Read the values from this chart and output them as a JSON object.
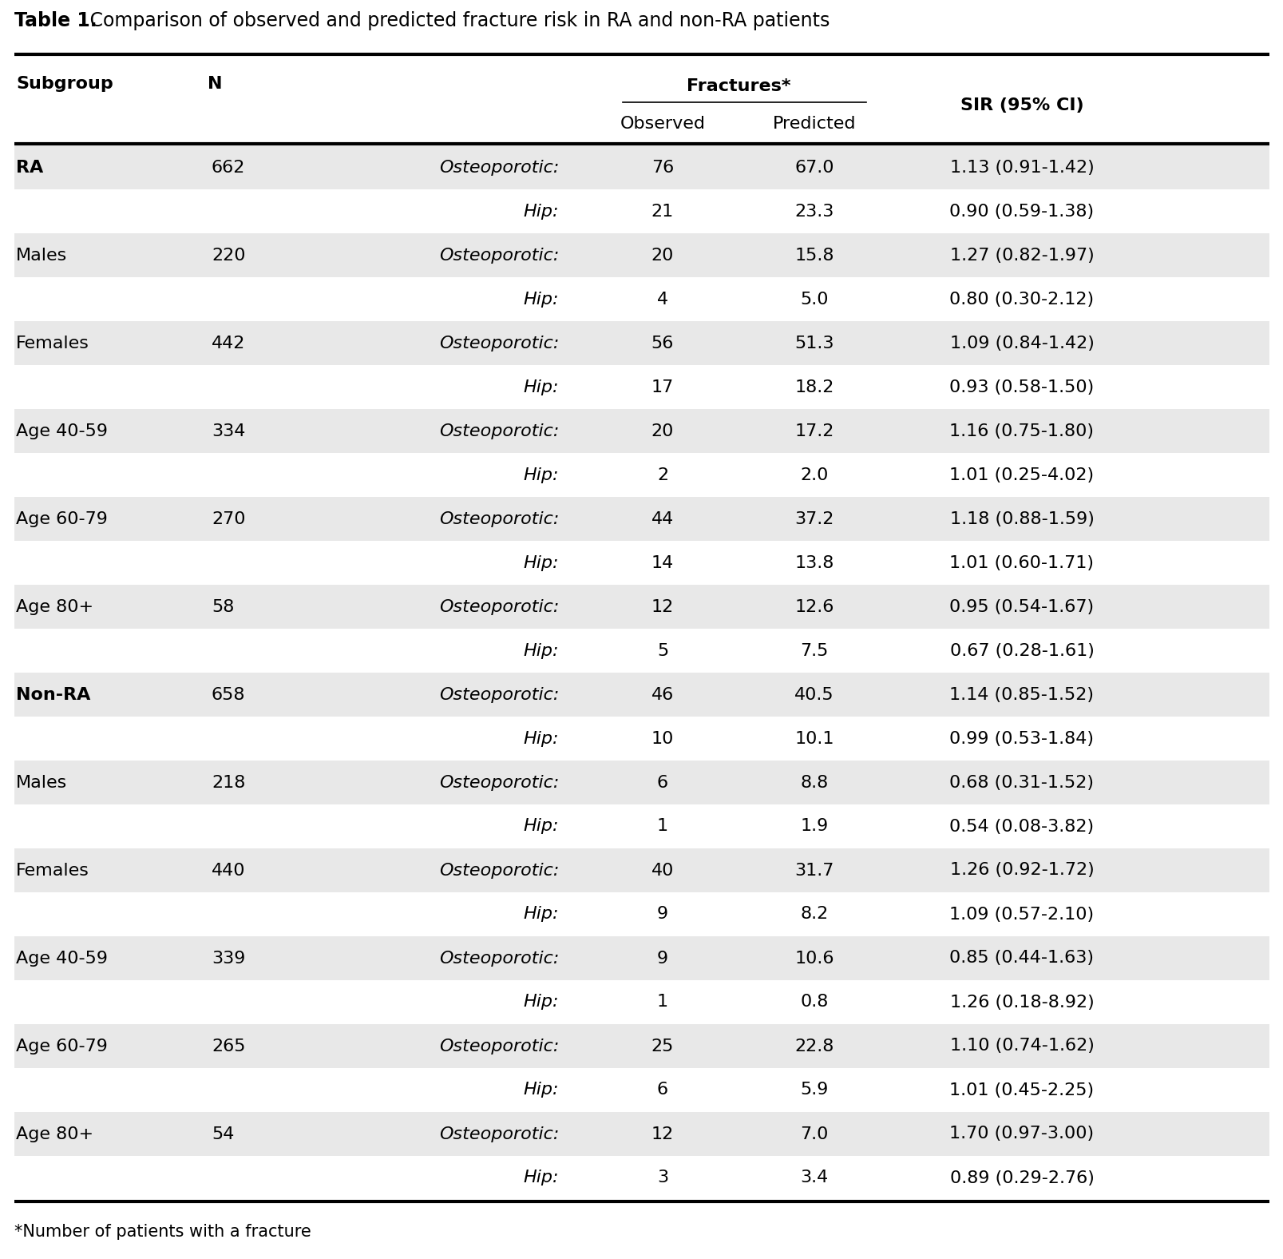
{
  "title_bold": "Table 1.",
  "title_regular": " Comparison of observed and predicted fracture risk in RA and non-RA patients",
  "footnote": "*Number of patients with a fracture",
  "rows": [
    {
      "subgroup": "RA",
      "n": "662",
      "fracture_type": "Osteoporotic:",
      "observed": "76",
      "predicted": "67.0",
      "sir": "1.13 (0.91-1.42)",
      "bold": true,
      "shaded": true
    },
    {
      "subgroup": "",
      "n": "",
      "fracture_type": "Hip:",
      "observed": "21",
      "predicted": "23.3",
      "sir": "0.90 (0.59-1.38)",
      "bold": false,
      "shaded": false
    },
    {
      "subgroup": "Males",
      "n": "220",
      "fracture_type": "Osteoporotic:",
      "observed": "20",
      "predicted": "15.8",
      "sir": "1.27 (0.82-1.97)",
      "bold": false,
      "shaded": true
    },
    {
      "subgroup": "",
      "n": "",
      "fracture_type": "Hip:",
      "observed": "4",
      "predicted": "5.0",
      "sir": "0.80 (0.30-2.12)",
      "bold": false,
      "shaded": false
    },
    {
      "subgroup": "Females",
      "n": "442",
      "fracture_type": "Osteoporotic:",
      "observed": "56",
      "predicted": "51.3",
      "sir": "1.09 (0.84-1.42)",
      "bold": false,
      "shaded": true
    },
    {
      "subgroup": "",
      "n": "",
      "fracture_type": "Hip:",
      "observed": "17",
      "predicted": "18.2",
      "sir": "0.93 (0.58-1.50)",
      "bold": false,
      "shaded": false
    },
    {
      "subgroup": "Age 40-59",
      "n": "334",
      "fracture_type": "Osteoporotic:",
      "observed": "20",
      "predicted": "17.2",
      "sir": "1.16 (0.75-1.80)",
      "bold": false,
      "shaded": true
    },
    {
      "subgroup": "",
      "n": "",
      "fracture_type": "Hip:",
      "observed": "2",
      "predicted": "2.0",
      "sir": "1.01 (0.25-4.02)",
      "bold": false,
      "shaded": false
    },
    {
      "subgroup": "Age 60-79",
      "n": "270",
      "fracture_type": "Osteoporotic:",
      "observed": "44",
      "predicted": "37.2",
      "sir": "1.18 (0.88-1.59)",
      "bold": false,
      "shaded": true
    },
    {
      "subgroup": "",
      "n": "",
      "fracture_type": "Hip:",
      "observed": "14",
      "predicted": "13.8",
      "sir": "1.01 (0.60-1.71)",
      "bold": false,
      "shaded": false
    },
    {
      "subgroup": "Age 80+",
      "n": "58",
      "fracture_type": "Osteoporotic:",
      "observed": "12",
      "predicted": "12.6",
      "sir": "0.95 (0.54-1.67)",
      "bold": false,
      "shaded": true
    },
    {
      "subgroup": "",
      "n": "",
      "fracture_type": "Hip:",
      "observed": "5",
      "predicted": "7.5",
      "sir": "0.67 (0.28-1.61)",
      "bold": false,
      "shaded": false
    },
    {
      "subgroup": "Non-RA",
      "n": "658",
      "fracture_type": "Osteoporotic:",
      "observed": "46",
      "predicted": "40.5",
      "sir": "1.14 (0.85-1.52)",
      "bold": true,
      "shaded": true
    },
    {
      "subgroup": "",
      "n": "",
      "fracture_type": "Hip:",
      "observed": "10",
      "predicted": "10.1",
      "sir": "0.99 (0.53-1.84)",
      "bold": false,
      "shaded": false
    },
    {
      "subgroup": "Males",
      "n": "218",
      "fracture_type": "Osteoporotic:",
      "observed": "6",
      "predicted": "8.8",
      "sir": "0.68 (0.31-1.52)",
      "bold": false,
      "shaded": true
    },
    {
      "subgroup": "",
      "n": "",
      "fracture_type": "Hip:",
      "observed": "1",
      "predicted": "1.9",
      "sir": "0.54 (0.08-3.82)",
      "bold": false,
      "shaded": false
    },
    {
      "subgroup": "Females",
      "n": "440",
      "fracture_type": "Osteoporotic:",
      "observed": "40",
      "predicted": "31.7",
      "sir": "1.26 (0.92-1.72)",
      "bold": false,
      "shaded": true
    },
    {
      "subgroup": "",
      "n": "",
      "fracture_type": "Hip:",
      "observed": "9",
      "predicted": "8.2",
      "sir": "1.09 (0.57-2.10)",
      "bold": false,
      "shaded": false
    },
    {
      "subgroup": "Age 40-59",
      "n": "339",
      "fracture_type": "Osteoporotic:",
      "observed": "9",
      "predicted": "10.6",
      "sir": "0.85 (0.44-1.63)",
      "bold": false,
      "shaded": true
    },
    {
      "subgroup": "",
      "n": "",
      "fracture_type": "Hip:",
      "observed": "1",
      "predicted": "0.8",
      "sir": "1.26 (0.18-8.92)",
      "bold": false,
      "shaded": false
    },
    {
      "subgroup": "Age 60-79",
      "n": "265",
      "fracture_type": "Osteoporotic:",
      "observed": "25",
      "predicted": "22.8",
      "sir": "1.10 (0.74-1.62)",
      "bold": false,
      "shaded": true
    },
    {
      "subgroup": "",
      "n": "",
      "fracture_type": "Hip:",
      "observed": "6",
      "predicted": "5.9",
      "sir": "1.01 (0.45-2.25)",
      "bold": false,
      "shaded": false
    },
    {
      "subgroup": "Age 80+",
      "n": "54",
      "fracture_type": "Osteoporotic:",
      "observed": "12",
      "predicted": "7.0",
      "sir": "1.70 (0.97-3.00)",
      "bold": false,
      "shaded": true
    },
    {
      "subgroup": "",
      "n": "",
      "fracture_type": "Hip:",
      "observed": "3",
      "predicted": "3.4",
      "sir": "0.89 (0.29-2.76)",
      "bold": false,
      "shaded": false
    }
  ],
  "shade_color": "#e8e8e8",
  "bg_color": "#ffffff",
  "text_color": "#000000",
  "title_fontsize": 17,
  "header_fontsize": 16,
  "data_fontsize": 16,
  "footnote_fontsize": 15
}
